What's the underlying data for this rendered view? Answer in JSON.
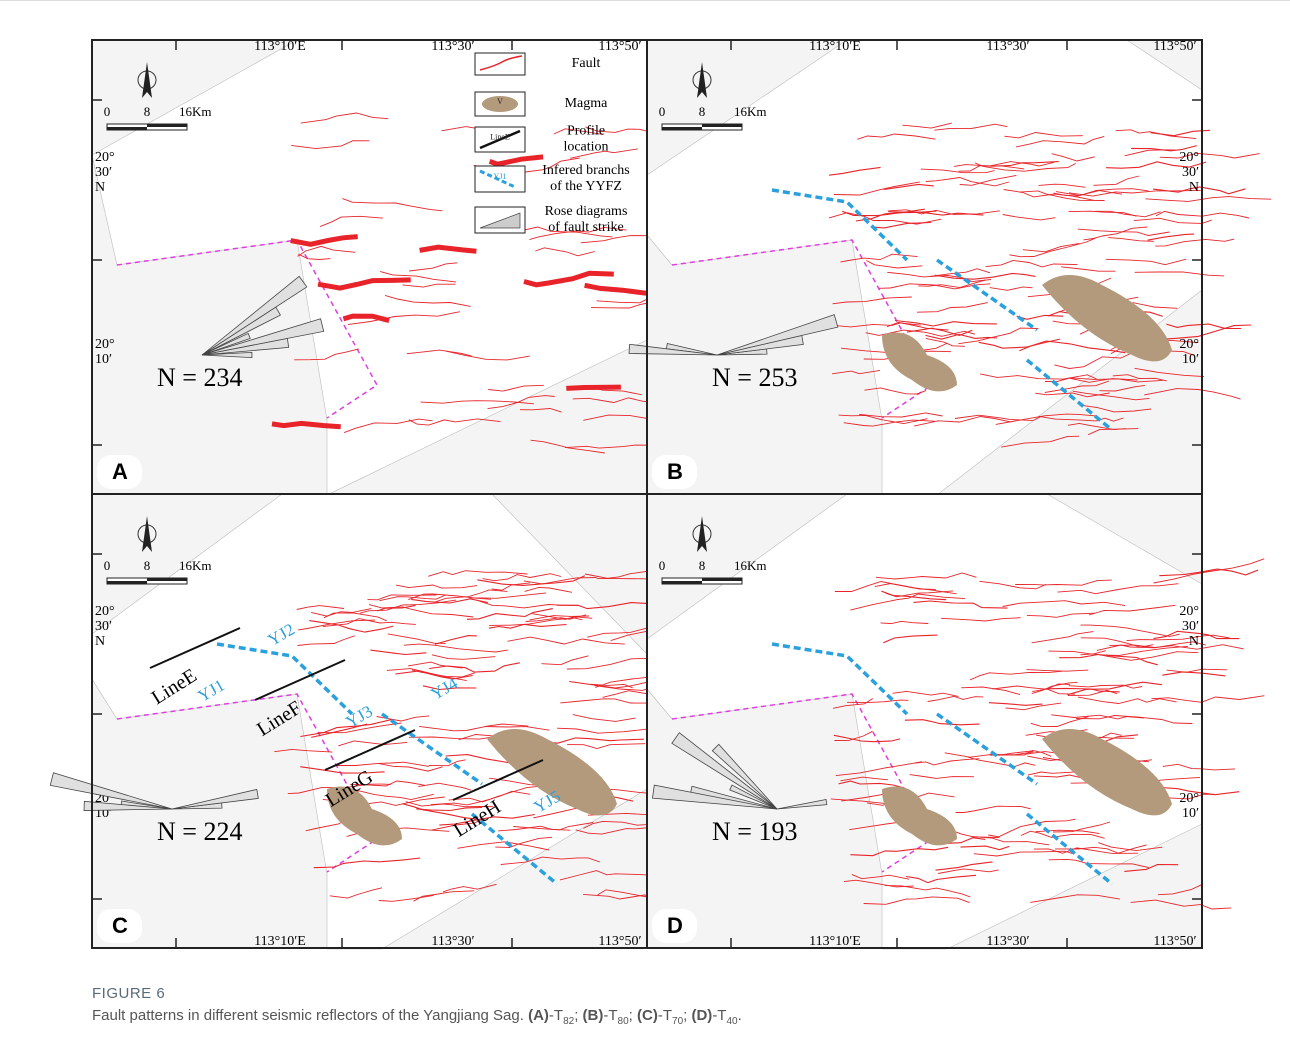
{
  "figure": {
    "lon_labels": [
      "113°10′E",
      "113°30′",
      "113°50′"
    ],
    "lat_upper": [
      "20°",
      "30′",
      "N"
    ],
    "lat_lower": [
      "20°",
      "10′"
    ],
    "scale_labels": [
      "0",
      "8",
      "16Km"
    ],
    "panels": [
      {
        "letter": "A",
        "count": "N = 234"
      },
      {
        "letter": "B",
        "count": "N = 253"
      },
      {
        "letter": "C",
        "count": "N = 224"
      },
      {
        "letter": "D",
        "count": "N = 193"
      }
    ],
    "legend": [
      {
        "lines": [
          "Fault"
        ]
      },
      {
        "lines": [
          "Magma"
        ],
        "icon_text": "V"
      },
      {
        "lines": [
          "Profile",
          "location"
        ],
        "icon_text": "LineE"
      },
      {
        "lines": [
          "Infered branchs",
          "of the YYFZ"
        ],
        "icon_text": "YJ1"
      },
      {
        "lines": [
          "Rose diagrams",
          "of fault strike"
        ]
      }
    ],
    "profiles": [
      "LineE",
      "LineF",
      "LineG",
      "LineH"
    ],
    "branches": [
      "YJ1",
      "YJ2",
      "YJ3",
      "YJ4",
      "YJ5"
    ]
  },
  "caption": {
    "title": "FIGURE 6",
    "text": "Fault patterns in different seismic reflectors of the Yangjiang Sag.",
    "items": [
      {
        "label": "(A)",
        "sep": "-T",
        "sub": "82",
        "end": ";"
      },
      {
        "label": "(B)",
        "sep": "-T",
        "sub": "80",
        "end": ";"
      },
      {
        "label": "(C)",
        "sep": "-T",
        "sub": "70",
        "end": ";"
      },
      {
        "label": "(D)",
        "sep": "-T",
        "sub": "40",
        "end": "."
      }
    ]
  }
}
